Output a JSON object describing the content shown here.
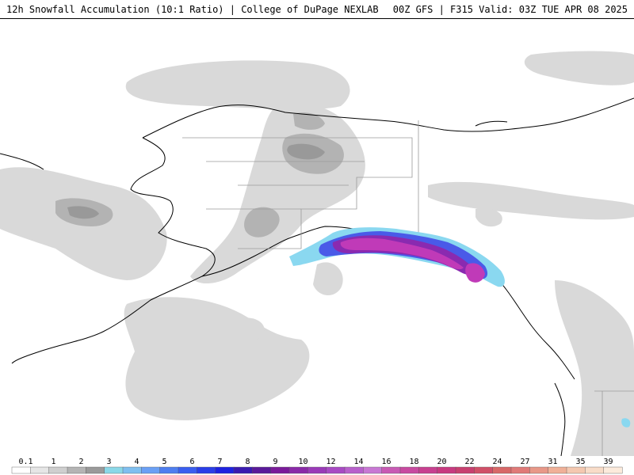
{
  "header": {
    "title": "12h Snowfall Accumulation (10:1 Ratio) | College of DuPage NEXLAB",
    "run_info": "00Z GFS | F315 Valid: 03Z TUE APR 08 2025"
  },
  "legend": {
    "labels": [
      "0.1",
      "1",
      "2",
      "3",
      "4",
      "5",
      "6",
      "7",
      "8",
      "9",
      "10",
      "12",
      "14",
      "16",
      "18",
      "20",
      "22",
      "24",
      "27",
      "31",
      "35",
      "39"
    ],
    "colors": [
      "#ffffff",
      "#e6e6e6",
      "#cfcfcf",
      "#b4b4b4",
      "#9a9a9a",
      "#8ad8e8",
      "#7fbff0",
      "#6aa0f5",
      "#4e7ef0",
      "#3a5ef0",
      "#2a3ee8",
      "#1e22e0",
      "#3a1ab0",
      "#5a1a9a",
      "#7a1a9a",
      "#8a2aa8",
      "#9a3ab8",
      "#a84ac4",
      "#b860cc",
      "#c878d4",
      "#c85ab4",
      "#c84aa0",
      "#c84090",
      "#c83a80",
      "#c84070",
      "#d05068",
      "#d86868",
      "#e07a78",
      "#e89888",
      "#f0b098",
      "#f4c8b0",
      "#f8dcc8",
      "#fcebdc"
    ]
  },
  "map": {
    "background": "#ffffff",
    "light_snow": "#d9d9d9",
    "moderate_snow": "#b3b3b3",
    "heavy_snow": "#999999",
    "blue_band": "#4a5ae8",
    "purple_band": "#8a2ab0",
    "magenta_core": "#c03ab8",
    "cyan_edge": "#8ad8f0",
    "coastline": "#000000",
    "borders": "#9a9a9a"
  }
}
